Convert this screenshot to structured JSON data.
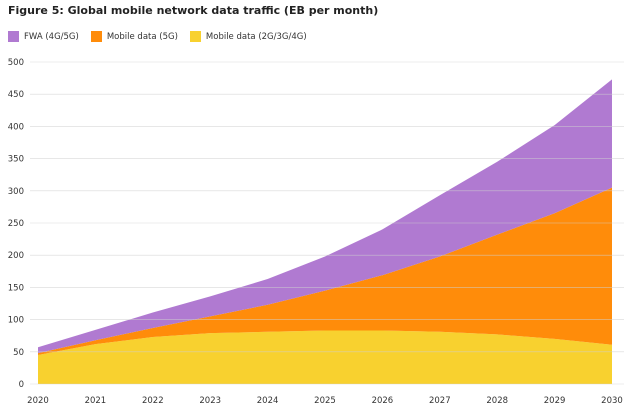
{
  "chart_data": {
    "type": "area",
    "stacked": true,
    "title": "Figure 5: Global mobile network data traffic (EB per month)",
    "x": [
      "2020",
      "2021",
      "2022",
      "2023",
      "2024",
      "2025",
      "2026",
      "2027",
      "2028",
      "2029",
      "2030"
    ],
    "ylim": [
      0,
      500
    ],
    "yticks": [
      0,
      50,
      100,
      150,
      200,
      250,
      300,
      350,
      400,
      450,
      500
    ],
    "grid": true,
    "legend_position": "top-left",
    "series": [
      {
        "name": "Mobile data (2G/3G/4G)",
        "color": "#f8d12f",
        "values": [
          45,
          62,
          73,
          79,
          81,
          83,
          83,
          81,
          77,
          70,
          61
        ]
      },
      {
        "name": "Mobile data (5G)",
        "color": "#ff8c0a",
        "values": [
          3,
          6,
          14,
          26,
          42,
          62,
          86,
          117,
          155,
          195,
          244
        ]
      },
      {
        "name": "FWA (4G/5G)",
        "color": "#b07ad1",
        "values": [
          9,
          16,
          24,
          31,
          40,
          53,
          71,
          95,
          113,
          137,
          168
        ]
      }
    ],
    "legend_order": [
      {
        "name": "FWA (4G/5G)",
        "color": "#b07ad1"
      },
      {
        "name": "Mobile data (5G)",
        "color": "#ff8c0a"
      },
      {
        "name": "Mobile data (2G/3G/4G)",
        "color": "#f8d12f"
      }
    ]
  }
}
